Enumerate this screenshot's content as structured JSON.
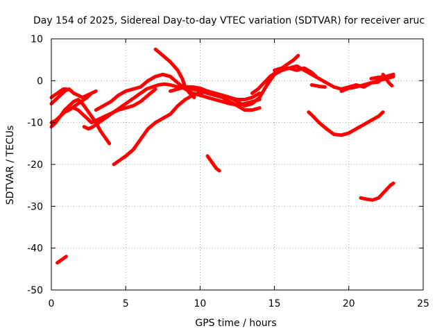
{
  "chart_data": {
    "type": "scatter",
    "title": "Day 154 of 2025, Sidereal Day-to-day VTEC variation (SDTVAR) for receiver aruc",
    "xlabel": "GPS time / hours",
    "ylabel": "SDTVAR / TECUs",
    "xlim": [
      0,
      25
    ],
    "ylim": [
      -50,
      10
    ],
    "xticks": [
      0,
      5,
      10,
      15,
      20,
      25
    ],
    "yticks": [
      10,
      0,
      -10,
      -20,
      -30,
      -40,
      -50
    ],
    "xtick_labels": [
      "0",
      "5",
      "10",
      "15",
      "20",
      "25"
    ],
    "ytick_labels": [
      "10",
      "0",
      "-10",
      "-20",
      "-30",
      "-40",
      "-50"
    ],
    "grid": true,
    "series": [
      {
        "name": "s1",
        "color": "#ff0000",
        "points": [
          [
            0.0,
            -5.5
          ],
          [
            0.3,
            -4.5
          ],
          [
            0.6,
            -3.5
          ],
          [
            0.9,
            -2.5
          ],
          [
            1.2,
            -2.0
          ],
          [
            1.5,
            -3.0
          ],
          [
            1.8,
            -3.5
          ],
          [
            2.1,
            -4.0
          ],
          [
            2.4,
            -3.5
          ],
          [
            2.7,
            -3.0
          ],
          [
            3.0,
            -2.5
          ],
          [
            2.7,
            -3.0
          ],
          [
            2.4,
            -4.0
          ],
          [
            2.0,
            -5.0
          ],
          [
            1.6,
            -6.0
          ],
          [
            1.2,
            -7.0
          ],
          [
            0.9,
            -7.5
          ],
          [
            0.6,
            -8.5
          ],
          [
            0.3,
            -9.5
          ],
          [
            0.0,
            -10.0
          ]
        ]
      },
      {
        "name": "s2",
        "color": "#ff0000",
        "points": [
          [
            0.0,
            -4.0
          ],
          [
            0.2,
            -3.5
          ],
          [
            0.4,
            -3.0
          ],
          [
            0.6,
            -2.5
          ],
          [
            0.8,
            -2.0
          ],
          [
            1.0,
            -2.0
          ]
        ]
      },
      {
        "name": "s3",
        "color": "#ff0000",
        "points": [
          [
            0.0,
            -11.0
          ],
          [
            0.3,
            -10.0
          ],
          [
            0.6,
            -8.5
          ],
          [
            0.9,
            -7.0
          ],
          [
            1.2,
            -6.0
          ],
          [
            1.5,
            -5.0
          ],
          [
            1.8,
            -4.5
          ],
          [
            2.1,
            -5.5
          ],
          [
            2.4,
            -7.0
          ],
          [
            2.7,
            -8.5
          ],
          [
            3.0,
            -10.0
          ],
          [
            3.3,
            -12.0
          ],
          [
            3.6,
            -13.5
          ],
          [
            3.9,
            -15.0
          ]
        ]
      },
      {
        "name": "s4",
        "color": "#ff0000",
        "points": [
          [
            1.5,
            -6.5
          ],
          [
            1.8,
            -7.0
          ],
          [
            2.1,
            -8.0
          ],
          [
            2.4,
            -9.0
          ],
          [
            2.7,
            -10.0
          ],
          [
            3.0,
            -9.5
          ],
          [
            3.3,
            -9.0
          ],
          [
            3.6,
            -8.5
          ],
          [
            3.9,
            -8.0
          ],
          [
            4.2,
            -7.5
          ],
          [
            4.5,
            -7.0
          ],
          [
            5.0,
            -6.5
          ],
          [
            5.5,
            -6.0
          ],
          [
            6.0,
            -5.0
          ],
          [
            6.5,
            -3.5
          ],
          [
            7.0,
            -2.0
          ]
        ]
      },
      {
        "name": "s5",
        "color": "#ff0000",
        "points": [
          [
            2.2,
            -11.0
          ],
          [
            2.5,
            -11.5
          ],
          [
            2.8,
            -11.0
          ],
          [
            3.2,
            -10.0
          ],
          [
            3.6,
            -9.0
          ],
          [
            4.0,
            -8.0
          ],
          [
            4.4,
            -7.0
          ],
          [
            4.8,
            -6.0
          ],
          [
            5.2,
            -5.0
          ],
          [
            5.6,
            -4.0
          ],
          [
            6.0,
            -3.0
          ],
          [
            6.4,
            -2.0
          ],
          [
            6.8,
            -1.5
          ],
          [
            7.2,
            -1.0
          ],
          [
            7.6,
            -0.8
          ],
          [
            8.0,
            -1.0
          ],
          [
            8.5,
            -1.5
          ],
          [
            9.0,
            -1.8
          ],
          [
            9.5,
            -2.0
          ],
          [
            10.0,
            -2.5
          ],
          [
            10.5,
            -3.0
          ],
          [
            11.0,
            -3.5
          ],
          [
            11.5,
            -4.0
          ],
          [
            12.0,
            -5.0
          ],
          [
            12.5,
            -6.0
          ],
          [
            13.0,
            -7.0
          ],
          [
            13.5,
            -7.0
          ],
          [
            14.0,
            -6.5
          ]
        ]
      },
      {
        "name": "s6",
        "color": "#ff0000",
        "points": [
          [
            3.0,
            -7.0
          ],
          [
            3.5,
            -6.0
          ],
          [
            4.0,
            -5.0
          ],
          [
            4.5,
            -3.5
          ],
          [
            5.0,
            -2.5
          ],
          [
            5.5,
            -2.0
          ],
          [
            6.0,
            -1.5
          ],
          [
            6.5,
            0.0
          ],
          [
            7.0,
            1.0
          ],
          [
            7.5,
            1.5
          ],
          [
            8.0,
            1.0
          ],
          [
            8.5,
            -0.5
          ],
          [
            9.0,
            -2.0
          ],
          [
            9.5,
            -3.0
          ],
          [
            10.0,
            -3.5
          ],
          [
            10.5,
            -4.0
          ],
          [
            11.0,
            -4.5
          ],
          [
            11.5,
            -5.0
          ],
          [
            12.0,
            -5.5
          ],
          [
            12.5,
            -5.8
          ],
          [
            13.0,
            -5.5
          ],
          [
            13.5,
            -5.0
          ],
          [
            14.0,
            -4.5
          ]
        ]
      },
      {
        "name": "s7",
        "color": "#ff0000",
        "points": [
          [
            4.2,
            -20.0
          ],
          [
            4.6,
            -19.0
          ],
          [
            5.0,
            -18.0
          ],
          [
            5.5,
            -16.5
          ],
          [
            6.0,
            -14.0
          ],
          [
            6.5,
            -11.5
          ],
          [
            7.0,
            -10.0
          ],
          [
            7.5,
            -9.0
          ],
          [
            8.0,
            -8.0
          ],
          [
            8.5,
            -6.0
          ],
          [
            9.0,
            -4.5
          ],
          [
            9.5,
            -3.5
          ],
          [
            10.0,
            -3.0
          ],
          [
            10.5,
            -2.5
          ],
          [
            11.0,
            -3.0
          ],
          [
            11.5,
            -3.5
          ],
          [
            12.0,
            -4.0
          ],
          [
            12.5,
            -5.0
          ],
          [
            13.0,
            -6.0
          ],
          [
            13.5,
            -5.5
          ],
          [
            14.0,
            -4.0
          ],
          [
            14.5,
            -1.0
          ],
          [
            15.0,
            1.5
          ],
          [
            15.5,
            2.5
          ],
          [
            16.0,
            3.0
          ],
          [
            16.5,
            3.5
          ],
          [
            17.0,
            2.5
          ],
          [
            17.5,
            1.5
          ],
          [
            18.0,
            0.5
          ],
          [
            18.5,
            -0.5
          ],
          [
            19.0,
            -1.5
          ],
          [
            19.5,
            -2.0
          ],
          [
            20.0,
            -1.5
          ],
          [
            20.5,
            -1.0
          ],
          [
            21.0,
            -1.5
          ],
          [
            21.5,
            -0.5
          ],
          [
            22.0,
            0.0
          ],
          [
            22.5,
            0.5
          ],
          [
            23.0,
            1.0
          ]
        ]
      },
      {
        "name": "s8",
        "color": "#ff0000",
        "points": [
          [
            7.0,
            7.5
          ],
          [
            7.5,
            6.0
          ],
          [
            8.0,
            4.5
          ],
          [
            8.5,
            2.5
          ],
          [
            8.8,
            0.5
          ],
          [
            9.0,
            -1.5
          ],
          [
            9.3,
            -3.0
          ],
          [
            9.6,
            -4.0
          ]
        ]
      },
      {
        "name": "s9",
        "color": "#ff0000",
        "points": [
          [
            8.0,
            -2.5
          ],
          [
            8.5,
            -2.0
          ],
          [
            9.0,
            -1.5
          ],
          [
            9.5,
            -1.5
          ],
          [
            10.0,
            -1.8
          ],
          [
            10.5,
            -2.5
          ],
          [
            11.0,
            -3.0
          ],
          [
            11.5,
            -3.5
          ],
          [
            12.0,
            -4.0
          ],
          [
            12.5,
            -4.5
          ],
          [
            13.0,
            -4.5
          ],
          [
            13.5,
            -4.0
          ],
          [
            14.0,
            -3.0
          ]
        ]
      },
      {
        "name": "s10",
        "color": "#ff0000",
        "points": [
          [
            10.5,
            -18.0
          ],
          [
            10.7,
            -19.0
          ],
          [
            10.9,
            -20.0
          ],
          [
            11.1,
            -21.0
          ],
          [
            11.3,
            -21.5
          ]
        ]
      },
      {
        "name": "s11",
        "color": "#ff0000",
        "points": [
          [
            13.5,
            -3.0
          ],
          [
            13.9,
            -2.0
          ],
          [
            14.3,
            -0.5
          ],
          [
            14.7,
            1.0
          ],
          [
            15.1,
            2.0
          ],
          [
            15.5,
            3.0
          ],
          [
            15.9,
            4.0
          ],
          [
            16.3,
            5.0
          ],
          [
            16.6,
            6.0
          ]
        ]
      },
      {
        "name": "s12",
        "color": "#ff0000",
        "points": [
          [
            15.0,
            2.5
          ],
          [
            15.5,
            3.0
          ],
          [
            16.0,
            3.0
          ],
          [
            16.5,
            2.5
          ],
          [
            17.0,
            3.0
          ],
          [
            17.5,
            2.0
          ],
          [
            17.8,
            1.0
          ]
        ]
      },
      {
        "name": "s13",
        "color": "#ff0000",
        "points": [
          [
            17.5,
            -1.0
          ],
          [
            17.8,
            -1.2
          ],
          [
            18.1,
            -1.4
          ],
          [
            18.4,
            -1.5
          ]
        ]
      },
      {
        "name": "s14",
        "color": "#ff0000",
        "points": [
          [
            17.3,
            -7.5
          ],
          [
            17.6,
            -8.5
          ],
          [
            18.0,
            -10.0
          ],
          [
            18.5,
            -11.5
          ],
          [
            19.0,
            -12.8
          ],
          [
            19.5,
            -13.0
          ],
          [
            20.0,
            -12.5
          ],
          [
            20.5,
            -11.5
          ],
          [
            21.0,
            -10.5
          ],
          [
            21.5,
            -9.5
          ],
          [
            22.0,
            -8.5
          ],
          [
            22.3,
            -7.5
          ]
        ]
      },
      {
        "name": "s15",
        "color": "#ff0000",
        "points": [
          [
            19.5,
            -2.5
          ],
          [
            20.0,
            -1.8
          ],
          [
            20.5,
            -1.5
          ],
          [
            21.0,
            -1.0
          ],
          [
            21.5,
            -0.5
          ],
          [
            22.0,
            -0.3
          ]
        ]
      },
      {
        "name": "s16",
        "color": "#ff0000",
        "points": [
          [
            21.5,
            0.5
          ],
          [
            22.0,
            0.8
          ],
          [
            22.5,
            1.0
          ],
          [
            23.0,
            1.5
          ]
        ]
      },
      {
        "name": "s17",
        "color": "#ff0000",
        "points": [
          [
            22.3,
            1.5
          ],
          [
            22.5,
            0.5
          ],
          [
            22.7,
            -0.5
          ],
          [
            22.9,
            -1.2
          ]
        ]
      },
      {
        "name": "s18",
        "color": "#ff0000",
        "points": [
          [
            20.8,
            -28.0
          ],
          [
            21.2,
            -28.3
          ],
          [
            21.6,
            -28.5
          ],
          [
            22.0,
            -28.0
          ],
          [
            22.4,
            -26.5
          ],
          [
            22.8,
            -25.0
          ],
          [
            23.0,
            -24.5
          ]
        ]
      },
      {
        "name": "s19",
        "color": "#ff0000",
        "points": [
          [
            0.4,
            -43.5
          ],
          [
            0.6,
            -43.0
          ],
          [
            0.8,
            -42.5
          ],
          [
            1.0,
            -42.0
          ]
        ]
      }
    ]
  }
}
